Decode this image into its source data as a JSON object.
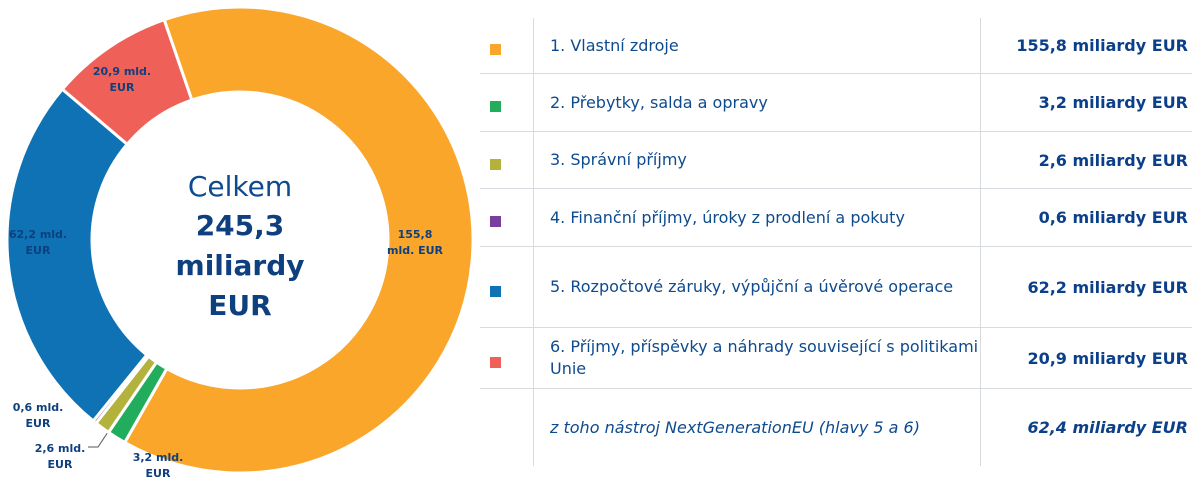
{
  "chart_data": {
    "type": "donut",
    "center_title": "Celkem",
    "center_total": "245,3 miliardy EUR",
    "categories": [
      "1. Vlastní zdroje",
      "2. Přebytky, salda a opravy",
      "3. Správní příjmy",
      "4. Finanční příjmy, úroky z prodlení a pokuty",
      "5. Rozpočtové záruky, výpůjční a úvěrové operace",
      "6. Příjmy, příspěvky a náhrady související s politikami Unie"
    ],
    "values": [
      155.8,
      3.2,
      2.6,
      0.6,
      62.2,
      20.9
    ],
    "value_labels": [
      "155,8 mld. EUR",
      "3,2 mld. EUR",
      "2,6 mld. EUR",
      "0,6 mld. EUR",
      "62,2 mld. EUR",
      "20,9 mld. EUR"
    ],
    "legend_value_labels": [
      "155,8 miliardy EUR",
      "3,2 miliardy EUR",
      "2,6 miliardy EUR",
      "0,6 miliardy EUR",
      "62,2 miliardy EUR",
      "20,9 miliardy EUR"
    ],
    "colors": [
      "#f9a62b",
      "#22ad5c",
      "#b3b23c",
      "#7a3f9d",
      "#0e72b5",
      "#ef6158"
    ],
    "sub_item": {
      "label": "z toho nástroj NextGenerationEU (hlavy 5 a 6)",
      "value_label": "62,4 miliardy EUR"
    }
  }
}
